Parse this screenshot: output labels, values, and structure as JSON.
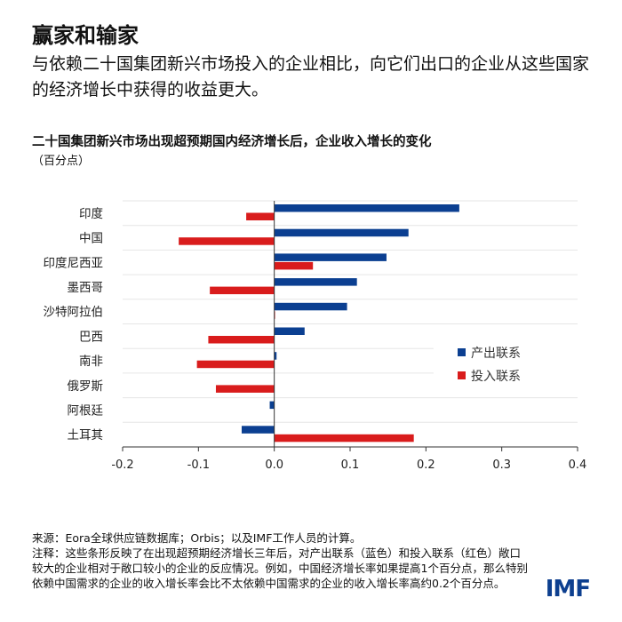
{
  "header": {
    "title": "赢家和输家",
    "subtitle": "与依赖二十国集团新兴市场投入的企业相比，向它们出口的企业从这些国家的经济增长中获得的收益更大。"
  },
  "chart_data": {
    "type": "bar",
    "orientation": "horizontal",
    "title": "二十国集团新兴市场出现超预期国内经济增长后，企业收入增长的变化",
    "unit": "（百分点）",
    "categories": [
      "印度",
      "中国",
      "印度尼西亚",
      "墨西哥",
      "沙特阿拉伯",
      "巴西",
      "南非",
      "俄罗斯",
      "阿根廷",
      "土耳其"
    ],
    "series": [
      {
        "name": "产出联系",
        "color": "#0b3f91",
        "values": [
          0.244,
          0.177,
          0.148,
          0.109,
          0.096,
          0.04,
          0.003,
          0.0,
          -0.006,
          -0.043
        ]
      },
      {
        "name": "投入联系",
        "color": "#d91c1c",
        "values": [
          -0.037,
          -0.126,
          0.051,
          -0.085,
          0.001,
          -0.087,
          -0.102,
          -0.077,
          0.0,
          0.184
        ]
      }
    ],
    "xlim": [
      -0.2,
      0.4
    ],
    "xticks": [
      "-0.2",
      "-0.1",
      "0.0",
      "0.1",
      "0.2",
      "0.3",
      "0.4"
    ],
    "legend": "right",
    "grid": true
  },
  "footer": {
    "source": "来源：Eora全球供应链数据库；Orbis；以及IMF工作人员的计算。",
    "note": "注释：这些条形反映了在出现超预期经济增长三年后，对产出联系（蓝色）和投入联系（红色）敞口较大的企业相对于敞口较小的企业的反应情况。例如，中国经济增长率如果提高1个百分点，那么特别依赖中国需求的企业的收入增长率会比不太依赖中国需求的企业的收入增长率高约0.2个百分点。"
  },
  "logo": "IMF"
}
